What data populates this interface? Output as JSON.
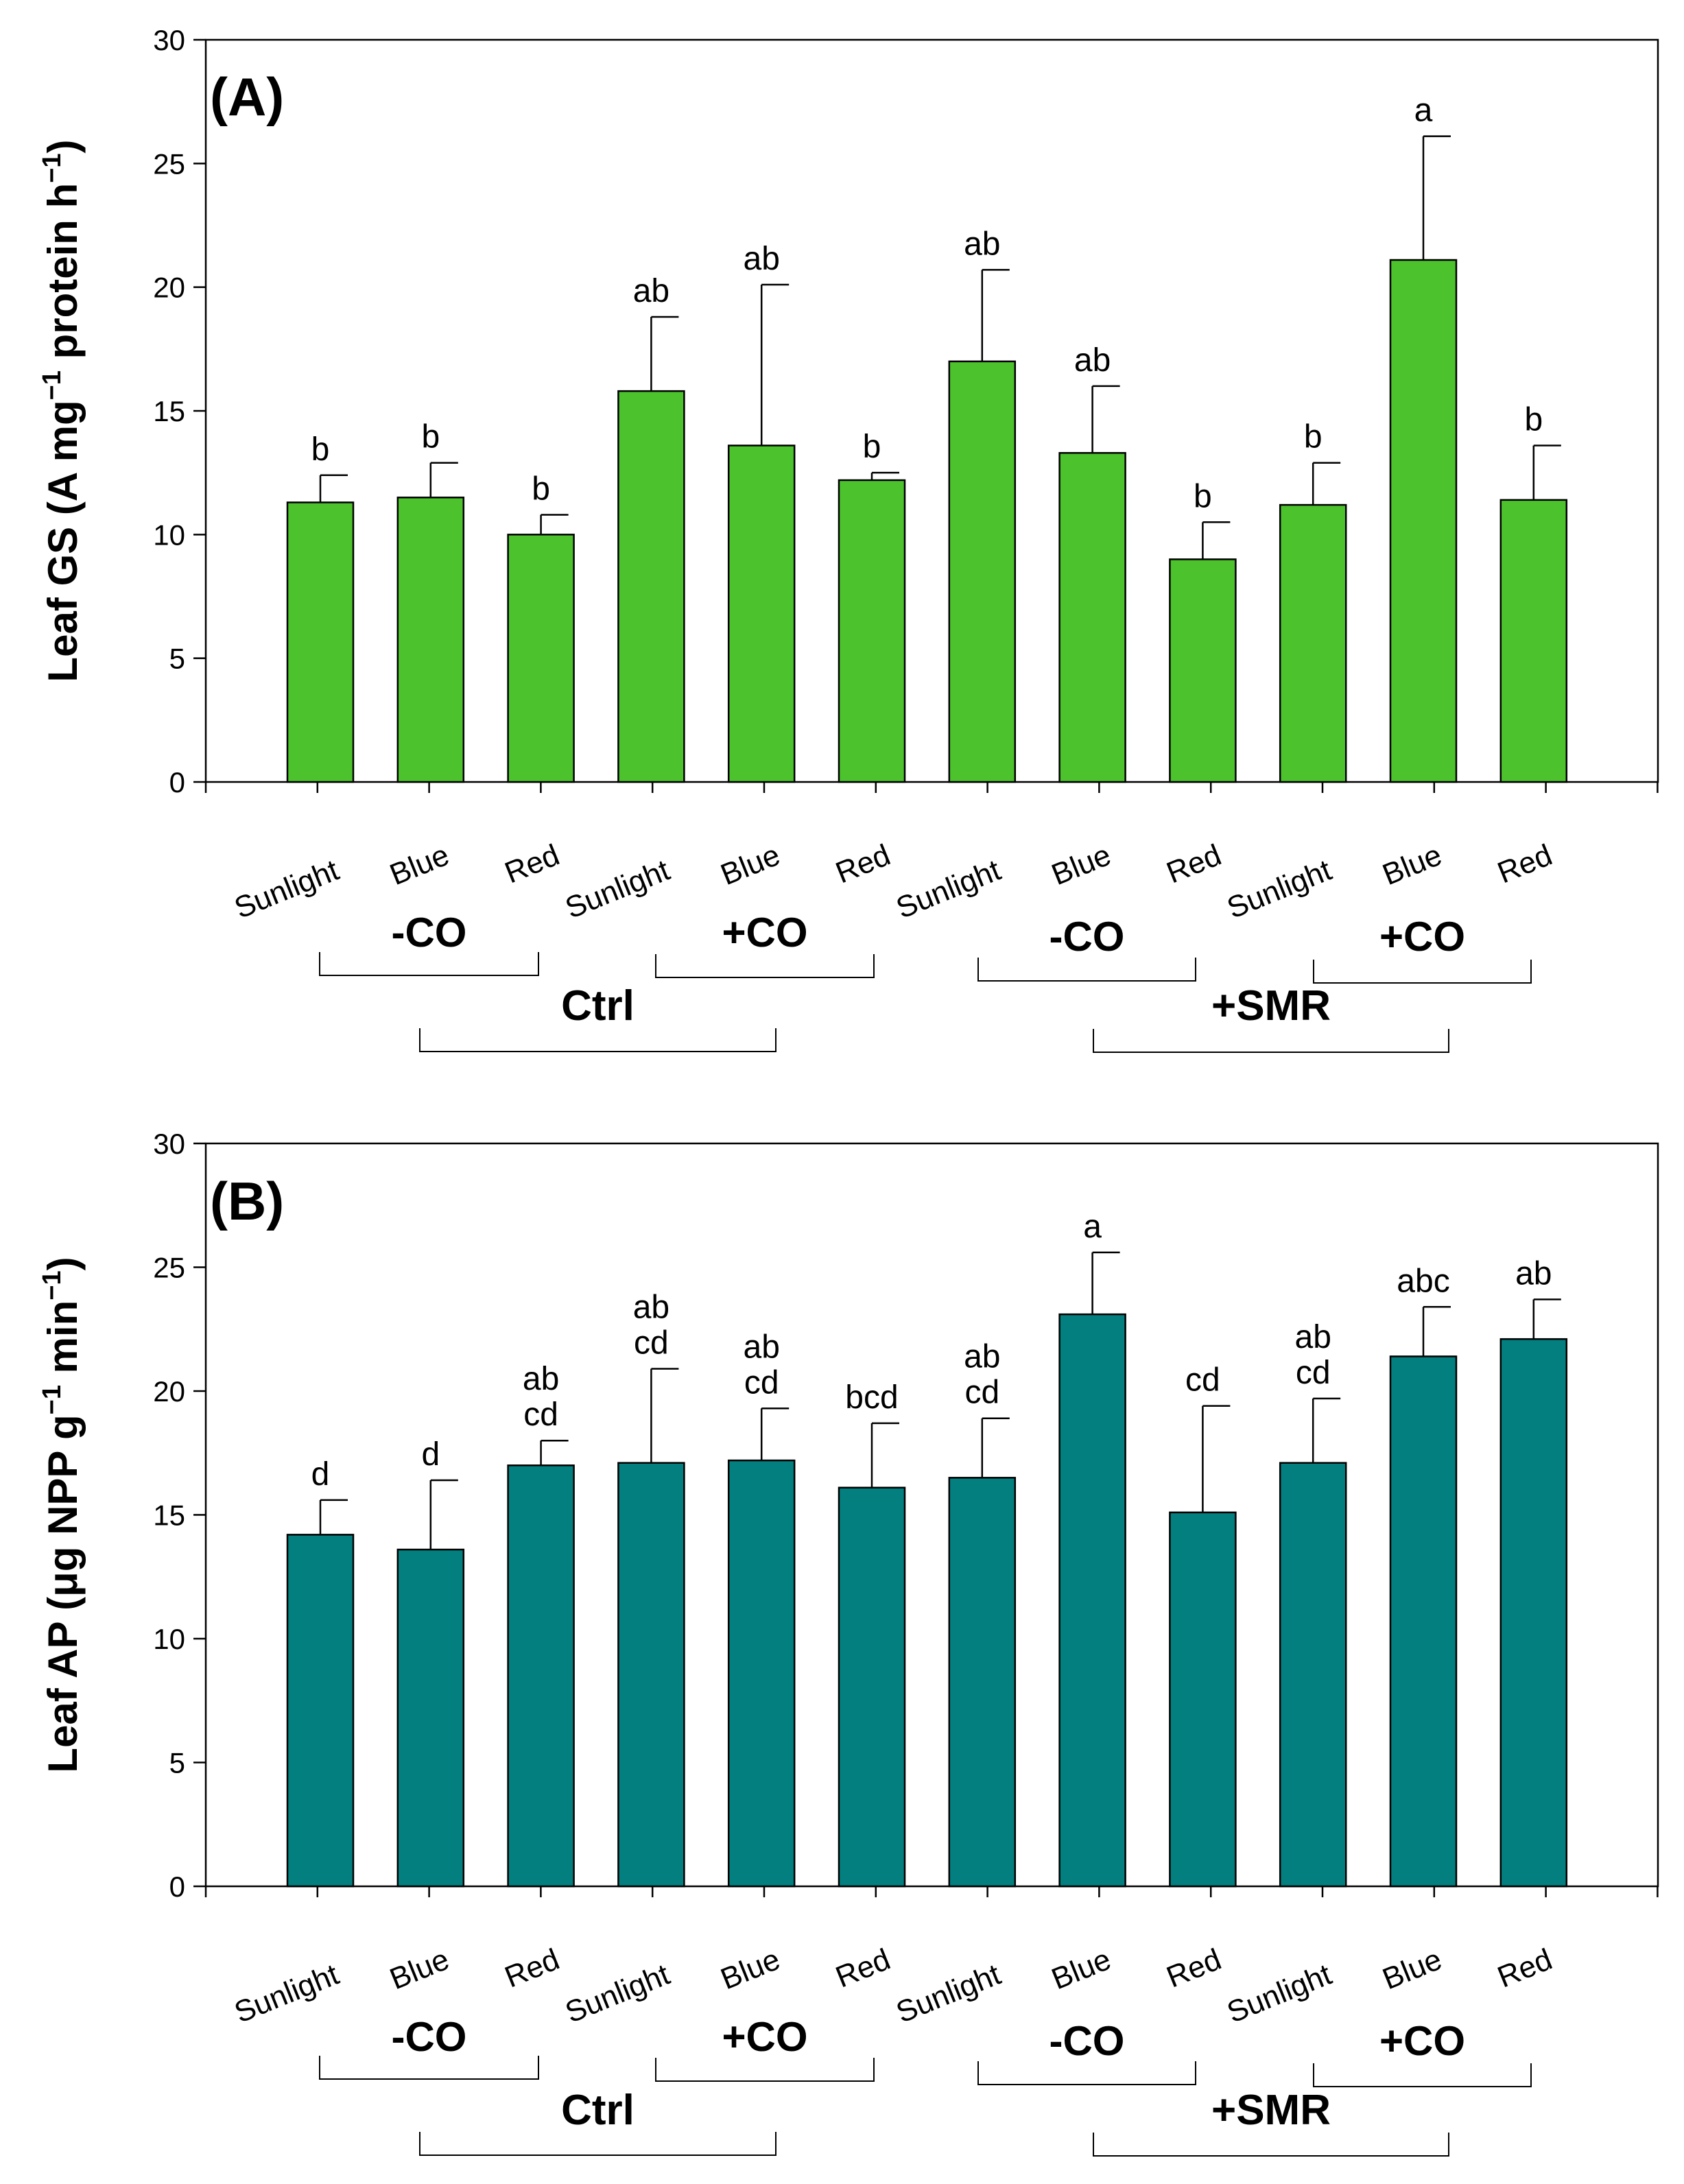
{
  "chart_data": [
    {
      "panel": "(A)",
      "type": "bar",
      "ylabel": "Leaf GS (A mg⁻¹ protein h⁻¹)",
      "ylabel_parts": {
        "main": "Leaf GS (A mg",
        "sup1": "−1",
        "mid": " protein h",
        "sup2": "−1",
        "end": ")"
      },
      "xlabel": "",
      "ylim": [
        0,
        30
      ],
      "yticks": [
        0,
        5,
        10,
        15,
        20,
        25,
        30
      ],
      "bar_color": "#4cc22c",
      "categories": [
        "Sunlight",
        "Blue",
        "Red",
        "Sunlight",
        "Blue",
        "Red",
        "Sunlight",
        "Blue",
        "Red",
        "Sunlight",
        "Blue",
        "Red"
      ],
      "values": [
        11.3,
        11.5,
        10.0,
        15.8,
        13.6,
        12.2,
        17.0,
        13.3,
        9.0,
        11.2,
        21.1,
        11.4
      ],
      "errors": [
        1.1,
        1.4,
        0.8,
        3.0,
        6.5,
        0.3,
        3.7,
        2.7,
        1.5,
        1.7,
        5.0,
        2.2
      ],
      "letters": [
        [
          "b"
        ],
        [
          "b"
        ],
        [
          "b"
        ],
        [
          "ab"
        ],
        [
          "ab"
        ],
        [
          "b"
        ],
        [
          "ab"
        ],
        [
          "ab"
        ],
        [
          "b"
        ],
        [
          "b"
        ],
        [
          "a"
        ],
        [
          "b"
        ]
      ],
      "group_labels": [
        "-CO",
        "+CO",
        "-CO",
        "+CO"
      ],
      "treatment_labels": [
        "Ctrl",
        "+SMR"
      ]
    },
    {
      "panel": "(B)",
      "type": "bar",
      "ylabel": "Leaf AP (μg NPP g⁻¹ min⁻¹)",
      "ylabel_parts": {
        "main": "Leaf AP (μg NPP g",
        "sup1": "−1",
        "mid": " min",
        "sup2": "−1",
        "end": ")"
      },
      "xlabel": "",
      "ylim": [
        0,
        30
      ],
      "yticks": [
        0,
        5,
        10,
        15,
        20,
        25,
        30
      ],
      "bar_color": "#037f7f",
      "categories": [
        "Sunlight",
        "Blue",
        "Red",
        "Sunlight",
        "Blue",
        "Red",
        "Sunlight",
        "Blue",
        "Red",
        "Sunlight",
        "Blue",
        "Red"
      ],
      "values": [
        14.2,
        13.6,
        17.0,
        17.1,
        17.2,
        16.1,
        16.5,
        23.1,
        15.1,
        17.1,
        21.4,
        22.1
      ],
      "errors": [
        1.4,
        2.8,
        1.0,
        3.8,
        2.1,
        2.6,
        2.4,
        2.5,
        4.3,
        2.6,
        2.0,
        1.6
      ],
      "letters": [
        [
          "d"
        ],
        [
          "d"
        ],
        [
          "ab",
          "cd"
        ],
        [
          "ab",
          "cd"
        ],
        [
          "ab",
          "cd"
        ],
        [
          "bcd"
        ],
        [
          "ab",
          "cd"
        ],
        [
          "a"
        ],
        [
          "cd"
        ],
        [
          "ab",
          "cd"
        ],
        [
          "abc"
        ],
        [
          "ab"
        ]
      ],
      "group_labels": [
        "-CO",
        "+CO",
        "-CO",
        "+CO"
      ],
      "treatment_labels": [
        "Ctrl",
        "+SMR"
      ]
    }
  ]
}
